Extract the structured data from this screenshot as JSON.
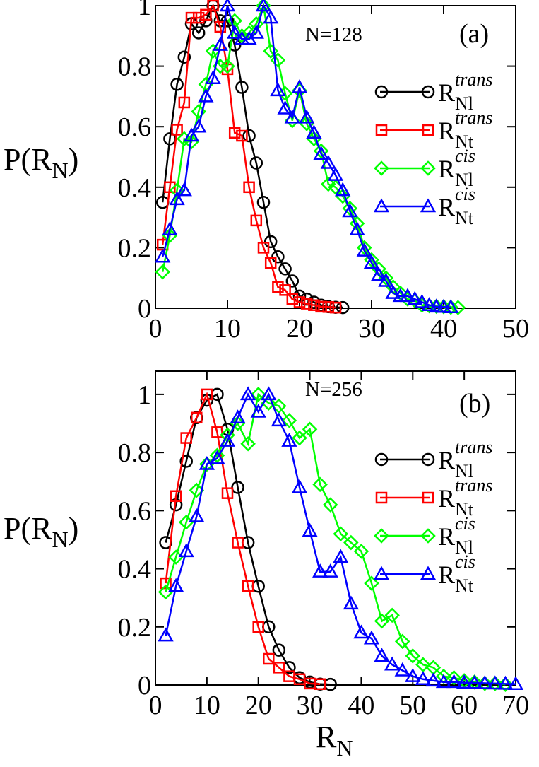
{
  "chart_data": [
    {
      "type": "line",
      "panel_label": "(a)",
      "annotation": "N=128",
      "xlabel": "",
      "ylabel": {
        "base": "P(R",
        "sub": "N",
        "close": ")"
      },
      "xlim": [
        0,
        50
      ],
      "ylim": [
        0,
        1.0
      ],
      "xticks": [
        0,
        10,
        20,
        30,
        40,
        50
      ],
      "yticks": [
        0,
        0.2,
        0.4,
        0.6,
        0.8,
        1
      ],
      "ytick_labels": [
        "0",
        "0.2",
        "0.4",
        "0.6",
        "0.8",
        "1"
      ],
      "legend_position": "right",
      "series": [
        {
          "name": "R_Nl^trans",
          "label_base": "R",
          "label_sup": "trans",
          "label_sub": "Nl",
          "color": "#000000",
          "marker": "circle",
          "x": [
            1,
            2,
            3,
            4,
            5,
            6,
            7,
            8,
            9,
            10,
            11,
            12,
            13,
            14,
            15,
            16,
            17,
            18,
            19,
            20,
            21,
            22,
            23,
            24,
            25,
            26
          ],
          "y": [
            0.35,
            0.56,
            0.74,
            0.83,
            0.94,
            0.91,
            0.95,
            1.0,
            0.95,
            0.95,
            0.87,
            0.73,
            0.57,
            0.48,
            0.35,
            0.22,
            0.17,
            0.13,
            0.09,
            0.04,
            0.03,
            0.02,
            0.01,
            0.005,
            0.003,
            0.002
          ]
        },
        {
          "name": "R_Nt^trans",
          "label_base": "R",
          "label_sup": "trans",
          "label_sub": "Nt",
          "color": "#ff0000",
          "marker": "square",
          "x": [
            1,
            2,
            3,
            4,
            5,
            6,
            7,
            8,
            9,
            10,
            11,
            12,
            13,
            14,
            15,
            16,
            17,
            18,
            19,
            20,
            21,
            22,
            23,
            24,
            25
          ],
          "y": [
            0.21,
            0.4,
            0.59,
            0.68,
            0.96,
            0.96,
            0.97,
            1.0,
            0.93,
            0.79,
            0.58,
            0.57,
            0.4,
            0.29,
            0.2,
            0.15,
            0.07,
            0.06,
            0.03,
            0.02,
            0.015,
            0.01,
            0.005,
            0.004,
            0.002
          ]
        },
        {
          "name": "R_Nl^cis",
          "label_base": "R",
          "label_sup": "cis",
          "label_sub": "Nl",
          "color": "#00ff00",
          "marker": "diamond",
          "x": [
            1,
            2,
            3,
            4,
            5,
            6,
            7,
            8,
            9,
            10,
            11,
            12,
            13,
            14,
            15,
            16,
            17,
            18,
            19,
            20,
            21,
            22,
            23,
            24,
            25,
            26,
            27,
            28,
            29,
            30,
            31,
            32,
            33,
            34,
            35,
            36,
            37,
            38,
            39,
            40,
            41,
            42
          ],
          "y": [
            0.12,
            0.24,
            0.39,
            0.56,
            0.55,
            0.65,
            0.74,
            0.85,
            0.8,
            0.8,
            0.95,
            0.9,
            0.91,
            0.94,
            1.0,
            0.85,
            0.82,
            0.71,
            0.62,
            0.72,
            0.61,
            0.56,
            0.52,
            0.41,
            0.4,
            0.37,
            0.33,
            0.28,
            0.2,
            0.16,
            0.13,
            0.1,
            0.07,
            0.05,
            0.03,
            0.025,
            0.01,
            0.008,
            0.006,
            0.005,
            0.003,
            0.002
          ]
        },
        {
          "name": "R_Nt^cis",
          "label_base": "R",
          "label_sup": "cis",
          "label_sub": "Nt",
          "color": "#0000ff",
          "marker": "triangle",
          "x": [
            1,
            2,
            3,
            4,
            5,
            6,
            7,
            8,
            9,
            10,
            11,
            12,
            13,
            14,
            15,
            16,
            17,
            18,
            19,
            20,
            21,
            22,
            23,
            24,
            25,
            26,
            27,
            28,
            29,
            30,
            31,
            32,
            33,
            34,
            35,
            36,
            37,
            38,
            39,
            40,
            41
          ],
          "y": [
            0.17,
            0.26,
            0.36,
            0.39,
            0.57,
            0.6,
            0.7,
            0.76,
            0.87,
            1.0,
            0.91,
            0.89,
            0.89,
            0.91,
            1.0,
            0.96,
            0.72,
            0.66,
            0.63,
            0.73,
            0.63,
            0.58,
            0.51,
            0.48,
            0.44,
            0.39,
            0.32,
            0.26,
            0.19,
            0.15,
            0.11,
            0.09,
            0.05,
            0.04,
            0.04,
            0.03,
            0.02,
            0.01,
            0.005,
            0.004,
            0.003
          ]
        }
      ]
    },
    {
      "type": "line",
      "panel_label": "(b)",
      "annotation": "N=256",
      "xlabel": {
        "base": "R",
        "sub": "N"
      },
      "ylabel": {
        "base": "P(R",
        "sub": "N",
        "close": ")"
      },
      "xlim": [
        0,
        70
      ],
      "ylim": [
        0,
        1.08
      ],
      "xticks": [
        0,
        10,
        20,
        30,
        40,
        50,
        60,
        70
      ],
      "yticks": [
        0,
        0.2,
        0.4,
        0.6,
        0.8,
        1
      ],
      "ytick_labels": [
        "0",
        "0.2",
        "0.4",
        "0.6",
        "0.8",
        "1"
      ],
      "legend_position": "right",
      "series": [
        {
          "name": "R_Nl^trans",
          "label_base": "R",
          "label_sup": "trans",
          "label_sub": "Nl",
          "color": "#000000",
          "marker": "circle",
          "x": [
            2,
            4,
            6,
            8,
            10,
            12,
            14,
            16,
            18,
            20,
            22,
            24,
            26,
            28,
            30,
            32,
            34
          ],
          "y": [
            0.49,
            0.62,
            0.77,
            0.92,
            0.98,
            1.0,
            0.88,
            0.68,
            0.49,
            0.34,
            0.2,
            0.12,
            0.06,
            0.025,
            0.01,
            0.003,
            0.002
          ]
        },
        {
          "name": "R_Nt^trans",
          "label_base": "R",
          "label_sup": "trans",
          "label_sub": "Nt",
          "color": "#ff0000",
          "marker": "square",
          "x": [
            2,
            4,
            6,
            8,
            10,
            12,
            14,
            16,
            18,
            20,
            22,
            24,
            26,
            28,
            30,
            32
          ],
          "y": [
            0.35,
            0.65,
            0.85,
            0.92,
            1.0,
            0.87,
            0.66,
            0.49,
            0.34,
            0.2,
            0.09,
            0.06,
            0.03,
            0.02,
            0.005,
            0.003
          ]
        },
        {
          "name": "R_Nl^cis",
          "label_base": "R",
          "label_sup": "cis",
          "label_sub": "Nl",
          "color": "#00ff00",
          "marker": "diamond",
          "x": [
            2,
            4,
            6,
            8,
            10,
            12,
            14,
            16,
            18,
            20,
            22,
            24,
            26,
            28,
            30,
            32,
            34,
            36,
            38,
            40,
            42,
            44,
            46,
            48,
            50,
            52,
            54,
            56,
            58,
            60,
            62,
            64,
            66,
            68
          ],
          "y": [
            0.32,
            0.44,
            0.56,
            0.67,
            0.76,
            0.79,
            0.86,
            0.9,
            0.83,
            1.0,
            0.97,
            0.96,
            0.91,
            0.85,
            0.88,
            0.69,
            0.62,
            0.52,
            0.49,
            0.46,
            0.35,
            0.22,
            0.24,
            0.15,
            0.1,
            0.07,
            0.06,
            0.03,
            0.025,
            0.015,
            0.01,
            0.005,
            0.005,
            0.002
          ]
        },
        {
          "name": "R_Nt^cis",
          "label_base": "R",
          "label_sup": "cis",
          "label_sub": "Nt",
          "color": "#0000ff",
          "marker": "triangle",
          "x": [
            2,
            4,
            6,
            8,
            10,
            12,
            14,
            16,
            18,
            20,
            22,
            24,
            26,
            28,
            30,
            32,
            34,
            36,
            38,
            40,
            42,
            44,
            46,
            48,
            50,
            52,
            54,
            56,
            58,
            60,
            62,
            64,
            66,
            68,
            70
          ],
          "y": [
            0.17,
            0.34,
            0.46,
            0.58,
            0.76,
            0.78,
            0.84,
            0.92,
            1.0,
            0.94,
            1.0,
            0.91,
            0.84,
            0.68,
            0.53,
            0.39,
            0.39,
            0.44,
            0.28,
            0.18,
            0.16,
            0.1,
            0.07,
            0.05,
            0.03,
            0.02,
            0.015,
            0.01,
            0.01,
            0.008,
            0.007,
            0.006,
            0.005,
            0.004,
            0.003
          ]
        }
      ]
    }
  ]
}
